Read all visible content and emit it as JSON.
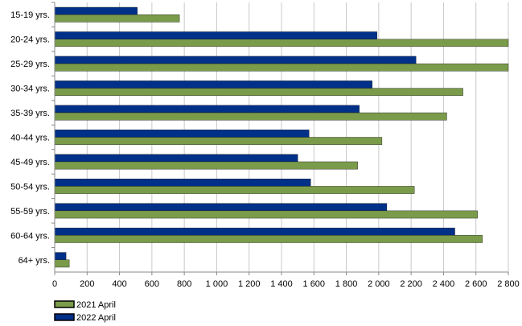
{
  "chart_data": {
    "type": "bar",
    "orientation": "horizontal",
    "categories": [
      "15-19 yrs.",
      "20-24 yrs.",
      "25-29 yrs.",
      "30-34 yrs.",
      "35-39 yrs.",
      "40-44 yrs.",
      "45-49 yrs.",
      "50-54 yrs.",
      "55-59 yrs.",
      "60-64 yrs.",
      "64+ yrs."
    ],
    "series": [
      {
        "name": "2022 April",
        "color": "#003087",
        "values": [
          510,
          1990,
          2230,
          1960,
          1880,
          1570,
          1500,
          1580,
          2050,
          2470,
          70
        ]
      },
      {
        "name": "2021 April",
        "color": "#7a9b4a",
        "values": [
          770,
          2800,
          2800,
          2520,
          2420,
          2020,
          1870,
          2220,
          2610,
          2640,
          90
        ]
      }
    ],
    "xlim": [
      0,
      2800
    ],
    "xticks": [
      0,
      200,
      400,
      600,
      800,
      1000,
      1200,
      1400,
      1600,
      1800,
      2000,
      2200,
      2400,
      2600,
      2800
    ],
    "xtick_labels": [
      "0",
      "200",
      "400",
      "600",
      "800",
      "1 000",
      "1 200",
      "1 400",
      "1 600",
      "1 800",
      "2 000",
      "2 200",
      "2 400",
      "2 600",
      "2 800"
    ],
    "grid": true,
    "legend": {
      "position": "bottom-left",
      "entries": [
        {
          "label": "2021 April",
          "color": "#7a9b4a"
        },
        {
          "label": "2022 April",
          "color": "#003087"
        }
      ]
    },
    "title": "",
    "xlabel": "",
    "ylabel": ""
  }
}
